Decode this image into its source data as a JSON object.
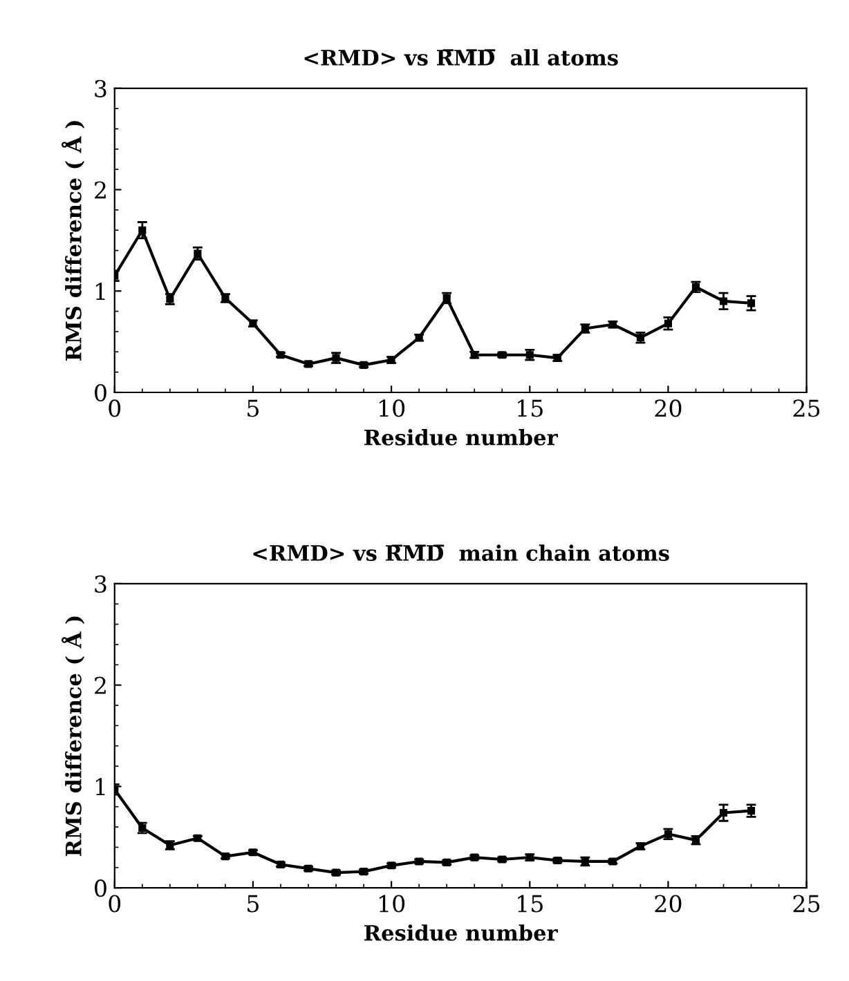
{
  "chart_data": [
    {
      "type": "line",
      "title": "<RMD> vs R̅M̅D̅  all atoms",
      "xlabel": "Residue number",
      "ylabel": "RMS difference ( Å )",
      "x": [
        0,
        1,
        2,
        3,
        4,
        5,
        6,
        7,
        8,
        9,
        10,
        11,
        12,
        13,
        14,
        15,
        16,
        17,
        18,
        19,
        20,
        21,
        22,
        23
      ],
      "series": [
        {
          "color": "#000000",
          "values": [
            1.15,
            1.6,
            0.92,
            1.37,
            0.93,
            0.68,
            0.37,
            0.28,
            0.34,
            0.27,
            0.32,
            0.54,
            0.93,
            0.37,
            0.37,
            0.37,
            0.34,
            0.63,
            0.67,
            0.54,
            0.68,
            1.04,
            0.9,
            0.88
          ],
          "errors": [
            0.05,
            0.08,
            0.05,
            0.06,
            0.04,
            0.03,
            0.02,
            0.02,
            0.05,
            0.02,
            0.03,
            0.03,
            0.05,
            0.03,
            0.02,
            0.05,
            0.03,
            0.04,
            0.03,
            0.05,
            0.06,
            0.05,
            0.08,
            0.07
          ]
        }
      ],
      "xlim": [
        0,
        25
      ],
      "xticks": [
        0,
        5,
        10,
        15,
        20,
        25
      ],
      "ylim": [
        0,
        3
      ],
      "yticks": [
        0,
        1,
        2,
        3
      ],
      "marker": "square",
      "line_style": "solid",
      "grid": false
    },
    {
      "type": "line",
      "title": "<RMD> vs R̅M̅D̅  main chain atoms",
      "xlabel": "Residue number",
      "ylabel": "RMS difference ( Å )",
      "x": [
        0,
        1,
        2,
        3,
        4,
        5,
        6,
        7,
        8,
        9,
        10,
        11,
        12,
        13,
        14,
        15,
        16,
        17,
        18,
        19,
        20,
        21,
        22,
        23
      ],
      "series": [
        {
          "color": "#000000",
          "values": [
            0.97,
            0.59,
            0.42,
            0.49,
            0.31,
            0.35,
            0.23,
            0.19,
            0.15,
            0.16,
            0.22,
            0.26,
            0.25,
            0.3,
            0.28,
            0.3,
            0.27,
            0.26,
            0.26,
            0.41,
            0.53,
            0.47,
            0.74,
            0.76
          ],
          "errors": [
            0.05,
            0.05,
            0.04,
            0.02,
            0.02,
            0.02,
            0.02,
            0.02,
            0.02,
            0.02,
            0.02,
            0.02,
            0.02,
            0.02,
            0.02,
            0.03,
            0.02,
            0.04,
            0.02,
            0.03,
            0.05,
            0.04,
            0.08,
            0.06
          ]
        }
      ],
      "xlim": [
        0,
        25
      ],
      "xticks": [
        0,
        5,
        10,
        15,
        20,
        25
      ],
      "ylim": [
        0,
        3
      ],
      "yticks": [
        0,
        1,
        2,
        3
      ],
      "marker": "square",
      "line_style": "solid",
      "grid": false
    }
  ]
}
